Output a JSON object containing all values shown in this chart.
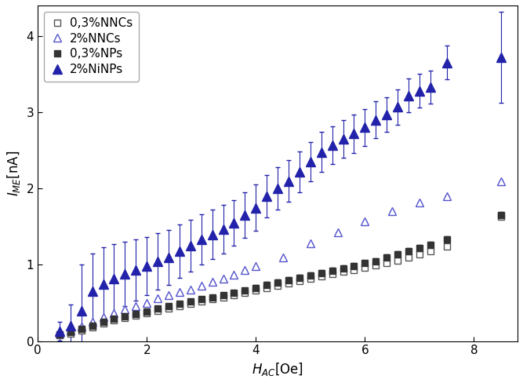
{
  "title": "",
  "xlabel": "H_{AC}[Oe]",
  "ylabel": "I_{ME}[nA]",
  "xlim": [
    0,
    8.8
  ],
  "ylim": [
    0,
    4.4
  ],
  "xticks": [
    0,
    2,
    4,
    6,
    8
  ],
  "yticks": [
    0,
    1,
    2,
    3,
    4
  ],
  "series": [
    {
      "label": "0,3%NNCs",
      "color": "#555555",
      "marker": "s",
      "fillstyle": "none",
      "markersize": 6,
      "x": [
        0.4,
        0.6,
        0.8,
        1.0,
        1.2,
        1.4,
        1.6,
        1.8,
        2.0,
        2.2,
        2.4,
        2.6,
        2.8,
        3.0,
        3.2,
        3.4,
        3.6,
        3.8,
        4.0,
        4.2,
        4.4,
        4.6,
        4.8,
        5.0,
        5.2,
        5.4,
        5.6,
        5.8,
        6.0,
        6.2,
        6.4,
        6.6,
        6.8,
        7.0,
        7.2,
        7.5,
        8.5
      ],
      "y": [
        0.08,
        0.1,
        0.14,
        0.18,
        0.23,
        0.27,
        0.31,
        0.34,
        0.37,
        0.4,
        0.43,
        0.46,
        0.49,
        0.52,
        0.55,
        0.57,
        0.6,
        0.63,
        0.66,
        0.7,
        0.73,
        0.76,
        0.79,
        0.82,
        0.85,
        0.88,
        0.91,
        0.93,
        0.96,
        0.99,
        1.02,
        1.06,
        1.1,
        1.14,
        1.18,
        1.24,
        1.63
      ],
      "yerr": [
        0,
        0,
        0,
        0,
        0,
        0,
        0,
        0,
        0,
        0,
        0,
        0,
        0,
        0,
        0,
        0,
        0,
        0,
        0,
        0,
        0,
        0,
        0,
        0,
        0,
        0,
        0,
        0,
        0,
        0,
        0,
        0,
        0,
        0,
        0,
        0,
        0
      ]
    },
    {
      "label": "2%NNCs",
      "color": "#5555cc",
      "marker": "^",
      "fillstyle": "none",
      "markersize": 7,
      "x": [
        0.4,
        0.6,
        0.8,
        1.0,
        1.2,
        1.4,
        1.6,
        1.8,
        2.0,
        2.2,
        2.4,
        2.6,
        2.8,
        3.0,
        3.2,
        3.4,
        3.6,
        3.8,
        4.0,
        4.5,
        5.0,
        5.5,
        6.0,
        6.5,
        7.0,
        7.5,
        8.5
      ],
      "y": [
        0.1,
        0.14,
        0.19,
        0.25,
        0.32,
        0.37,
        0.42,
        0.46,
        0.5,
        0.56,
        0.6,
        0.64,
        0.68,
        0.73,
        0.78,
        0.82,
        0.87,
        0.93,
        0.98,
        1.1,
        1.28,
        1.43,
        1.57,
        1.7,
        1.82,
        1.9,
        2.1
      ],
      "yerr": [
        0,
        0,
        0,
        0,
        0,
        0,
        0,
        0,
        0,
        0,
        0,
        0,
        0,
        0,
        0,
        0,
        0,
        0,
        0,
        0,
        0,
        0,
        0,
        0,
        0,
        0,
        0
      ]
    },
    {
      "label": "0,3%NPs",
      "color": "#333333",
      "marker": "s",
      "fillstyle": "full",
      "markersize": 6,
      "x": [
        0.4,
        0.6,
        0.8,
        1.0,
        1.2,
        1.4,
        1.6,
        1.8,
        2.0,
        2.2,
        2.4,
        2.6,
        2.8,
        3.0,
        3.2,
        3.4,
        3.6,
        3.8,
        4.0,
        4.2,
        4.4,
        4.6,
        4.8,
        5.0,
        5.2,
        5.4,
        5.6,
        5.8,
        6.0,
        6.2,
        6.4,
        6.6,
        6.8,
        7.0,
        7.2,
        7.5,
        8.5
      ],
      "y": [
        0.09,
        0.12,
        0.16,
        0.2,
        0.25,
        0.29,
        0.33,
        0.36,
        0.39,
        0.43,
        0.46,
        0.49,
        0.52,
        0.55,
        0.57,
        0.6,
        0.63,
        0.66,
        0.7,
        0.74,
        0.77,
        0.8,
        0.83,
        0.86,
        0.89,
        0.92,
        0.95,
        0.98,
        1.02,
        1.05,
        1.1,
        1.14,
        1.18,
        1.22,
        1.26,
        1.33,
        1.65
      ],
      "yerr": [
        0,
        0,
        0,
        0,
        0,
        0,
        0,
        0,
        0,
        0,
        0,
        0,
        0,
        0,
        0,
        0,
        0,
        0,
        0.04,
        0.04,
        0.04,
        0.04,
        0.04,
        0.04,
        0.04,
        0.04,
        0.04,
        0.04,
        0.04,
        0.04,
        0.04,
        0.04,
        0.04,
        0.04,
        0.04,
        0.04,
        0.04
      ]
    },
    {
      "label": "2%NiNPs",
      "color": "#2222aa",
      "marker": "^",
      "fillstyle": "full",
      "markersize": 8,
      "x": [
        0.4,
        0.6,
        0.8,
        1.0,
        1.2,
        1.4,
        1.6,
        1.8,
        2.0,
        2.2,
        2.4,
        2.6,
        2.8,
        3.0,
        3.2,
        3.4,
        3.6,
        3.8,
        4.0,
        4.2,
        4.4,
        4.6,
        4.8,
        5.0,
        5.2,
        5.4,
        5.6,
        5.8,
        6.0,
        6.2,
        6.4,
        6.6,
        6.8,
        7.0,
        7.2,
        7.5,
        8.5
      ],
      "y": [
        0.13,
        0.2,
        0.4,
        0.65,
        0.75,
        0.82,
        0.88,
        0.93,
        0.98,
        1.05,
        1.1,
        1.18,
        1.25,
        1.33,
        1.4,
        1.47,
        1.55,
        1.65,
        1.75,
        1.9,
        2.0,
        2.1,
        2.22,
        2.35,
        2.48,
        2.57,
        2.65,
        2.72,
        2.8,
        2.9,
        2.97,
        3.07,
        3.22,
        3.28,
        3.33,
        3.65,
        3.72
      ],
      "yerr": [
        0.12,
        0.28,
        0.6,
        0.5,
        0.48,
        0.45,
        0.42,
        0.4,
        0.38,
        0.37,
        0.36,
        0.35,
        0.34,
        0.33,
        0.32,
        0.32,
        0.3,
        0.3,
        0.3,
        0.28,
        0.28,
        0.27,
        0.27,
        0.26,
        0.26,
        0.25,
        0.25,
        0.25,
        0.24,
        0.24,
        0.23,
        0.23,
        0.22,
        0.22,
        0.22,
        0.22,
        0.6
      ]
    }
  ],
  "background_color": "#ffffff",
  "legend_loc": "upper left",
  "font_size": 11
}
